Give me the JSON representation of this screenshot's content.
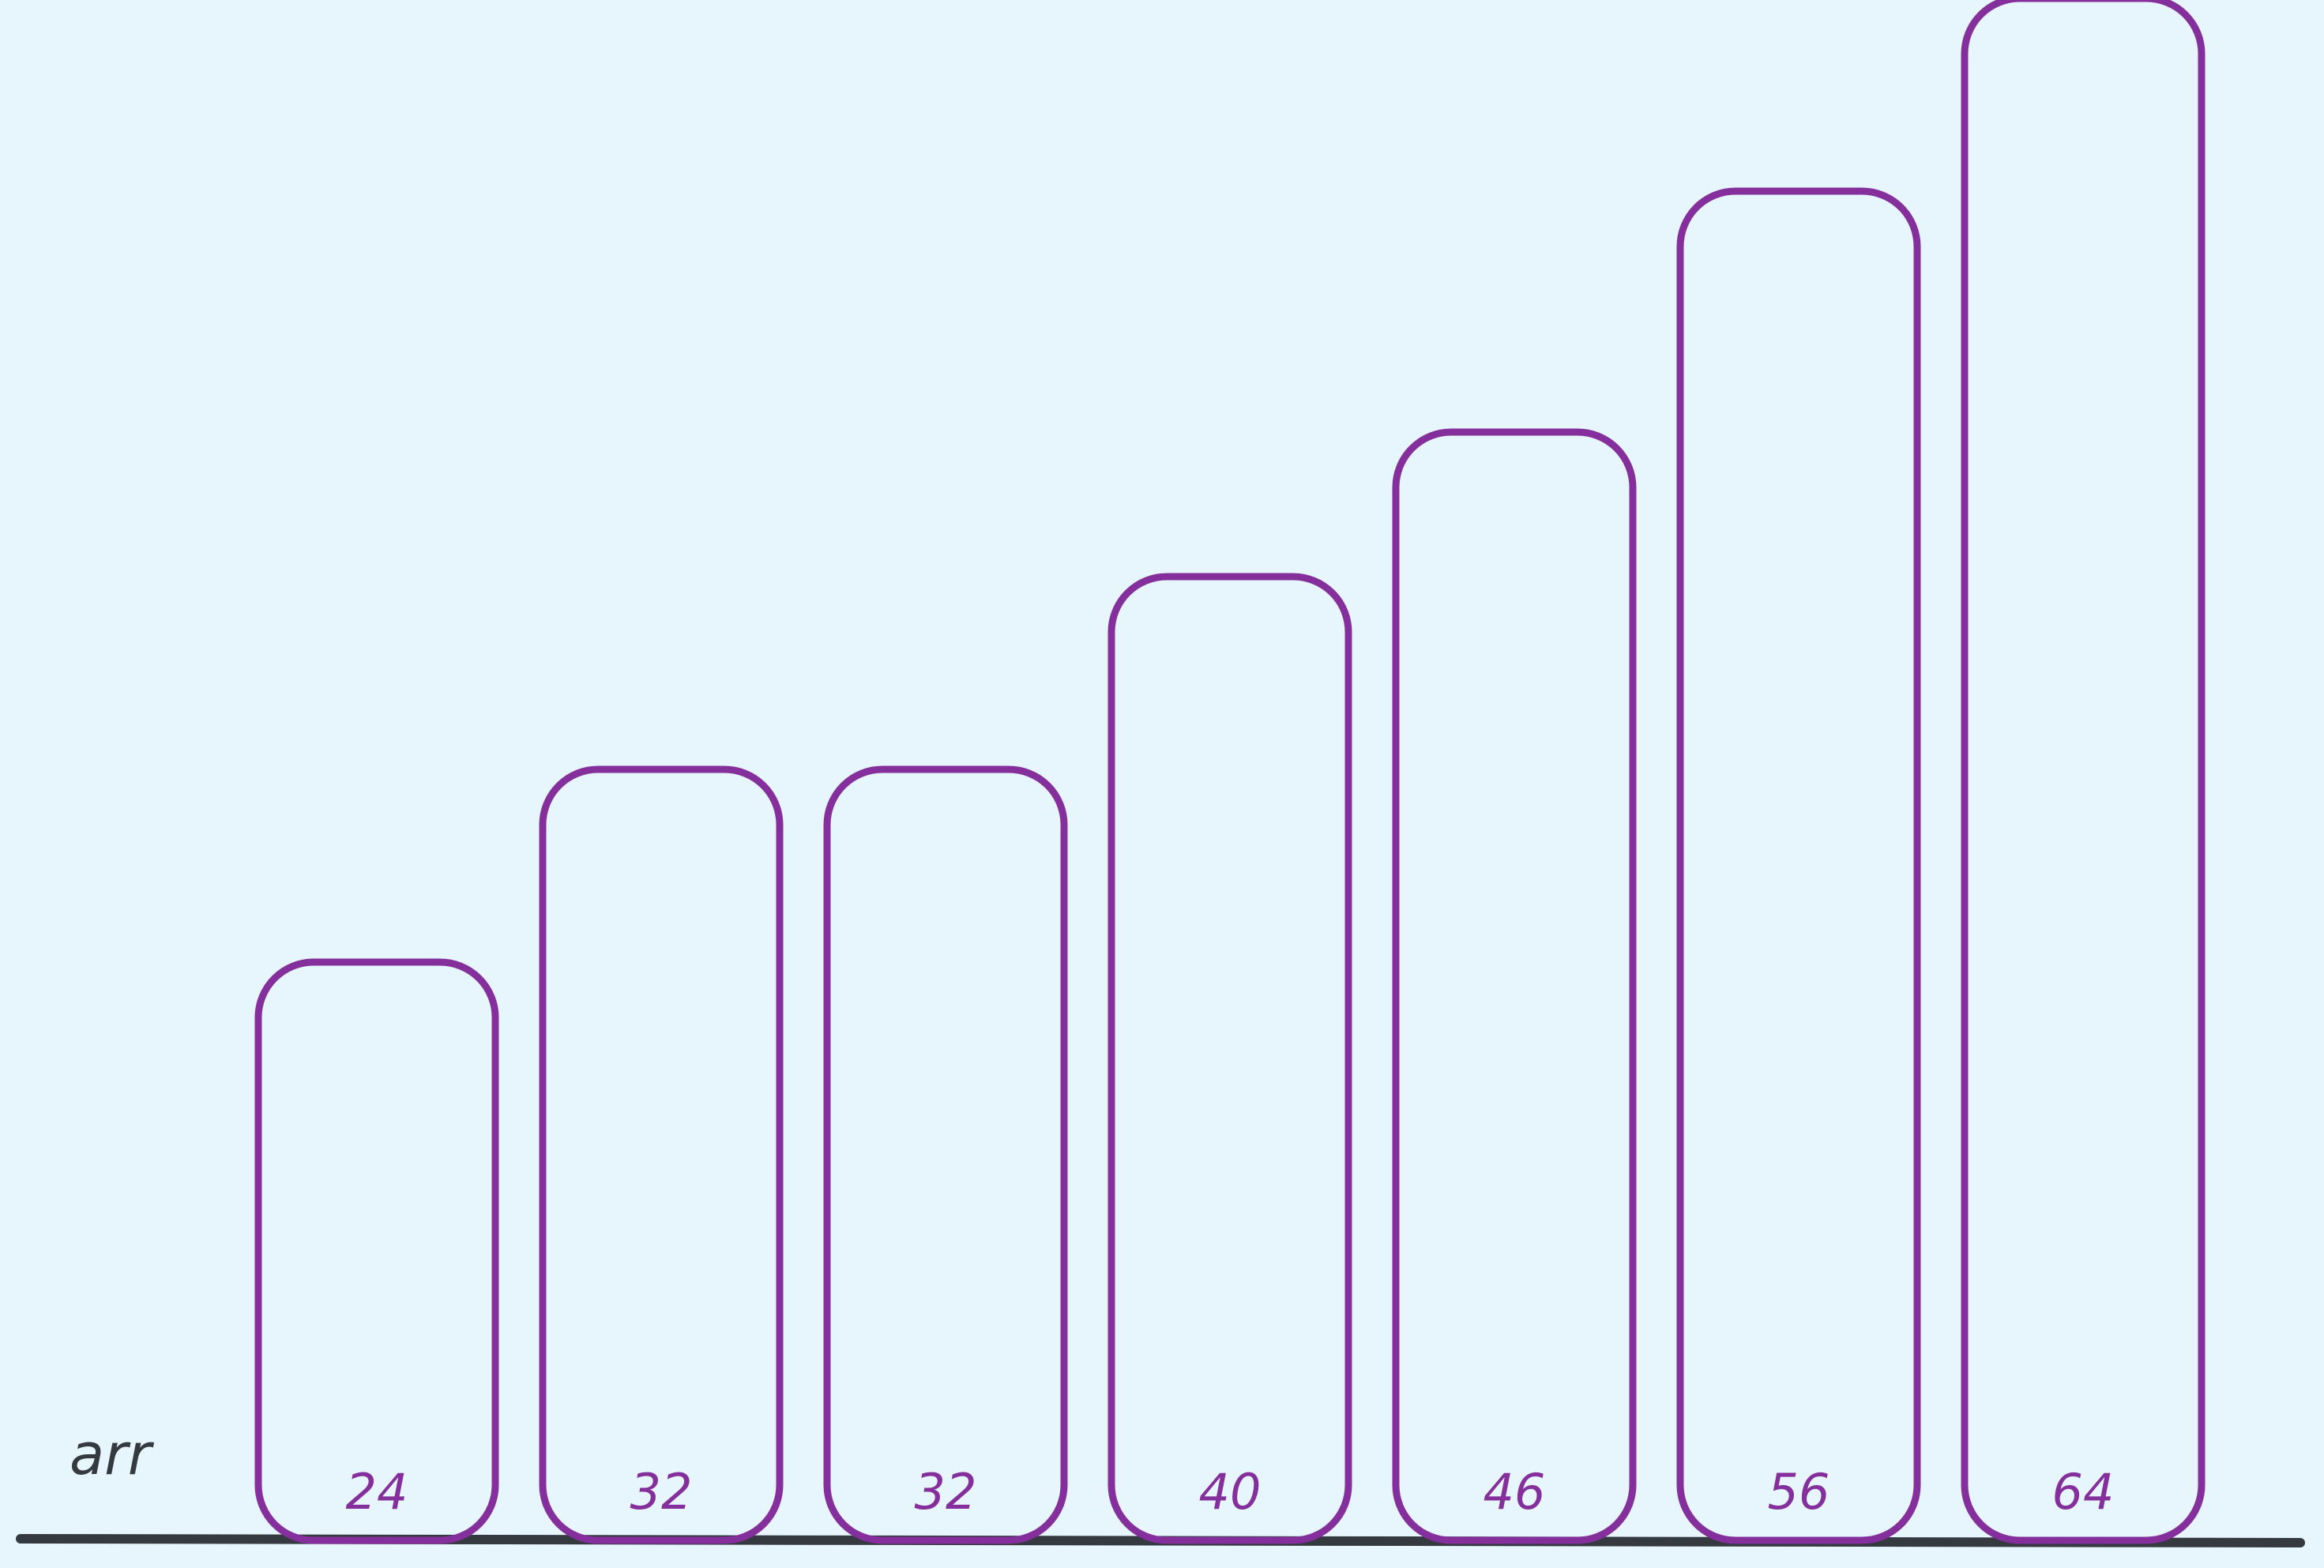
{
  "array_label": "arr",
  "values": [
    24,
    32,
    32,
    40,
    46,
    56,
    64
  ],
  "colors": {
    "background": "#e7f5fc",
    "bar_stroke": "#842f9c",
    "baseline": "#343a40",
    "label_text": "#343a40"
  }
}
